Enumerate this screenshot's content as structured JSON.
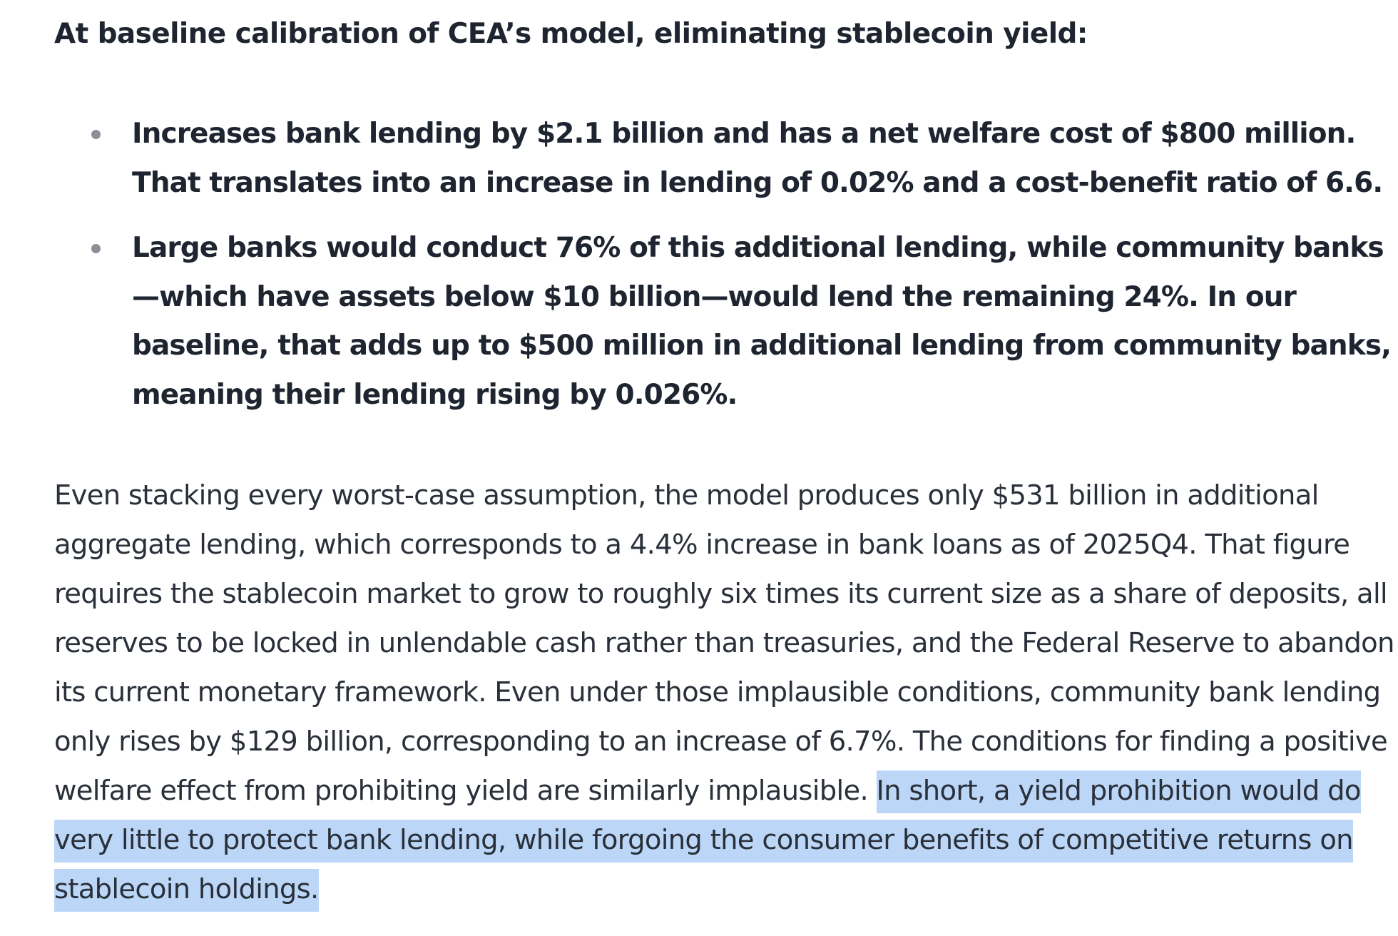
{
  "heading": "At baseline calibration of CEA’s model, eliminating stablecoin yield:",
  "bullets": [
    {
      "text": "Increases bank lending by $2.1 billion and has a net welfare cost of $800 million. That translates into an increase in lending of 0.02% and a cost-benefit ratio of 6.6."
    },
    {
      "text": "Large banks would conduct 76% of this additional lending, while community banks—which have assets below $10 billion—would lend the remaining 24%. In our baseline, that adds up to $500 million in additional lending from community banks, meaning their lending rising by 0.026%."
    }
  ],
  "paragraph": {
    "text": "Even stacking every worst-case assumption, the model produces only $531 billion in additional aggregate lending, which corresponds to a 4.4% increase in bank loans as of 2025Q4. That figure requires the stablecoin market to grow to roughly six times its current size as a share of deposits, all reserves to be locked in unlendable cash rather than treasuries, and the Federal Reserve to abandon its current monetary framework. Even under those implausible conditions, community bank lending only rises by $129 billion, corresponding to an increase of 6.7%. The conditions for finding a positive welfare effect from prohibiting yield are similarly implausible. ",
    "highlighted_text": "In short, a yield prohibition would do very little to protect bank lending, while forgoing the consumer benefits of competitive returns on stablecoin holdings."
  },
  "colors": {
    "text": "#1f2530",
    "highlight": "#bcd6f7",
    "bullet_dot": "#8a8f98"
  }
}
